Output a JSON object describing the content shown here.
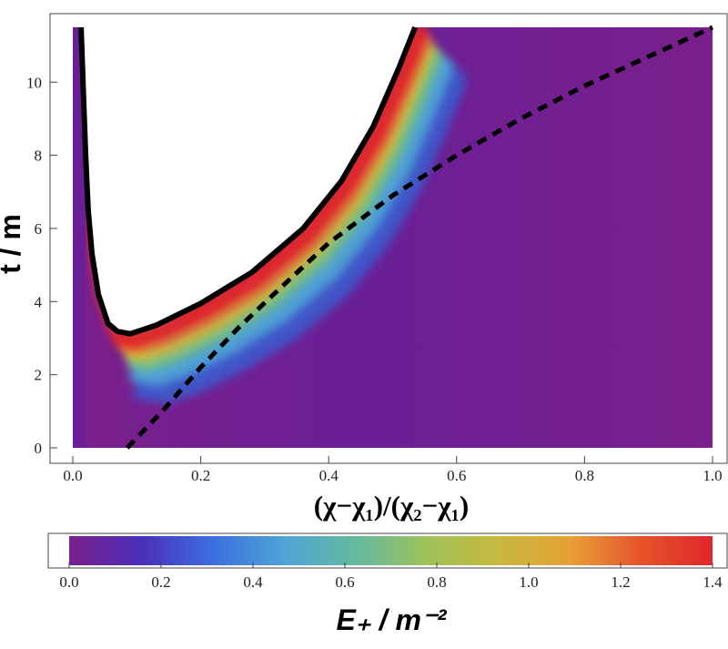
{
  "chart_data": [
    {
      "type": "heatmap",
      "xlabel": "(χ−χ₁)/(χ₂−χ₁)",
      "ylabel": "t / m",
      "xlim": [
        0.0,
        1.0
      ],
      "ylim": [
        0.0,
        11.5
      ],
      "x_ticks": [
        "0.0",
        "0.2",
        "0.4",
        "0.6",
        "0.8",
        "1.0"
      ],
      "y_ticks": [
        "0",
        "2",
        "4",
        "6",
        "8",
        "10"
      ],
      "x_tick_values": [
        0.0,
        0.2,
        0.4,
        0.6,
        0.8,
        1.0
      ],
      "y_tick_values": [
        0,
        2,
        4,
        6,
        8,
        10
      ],
      "grid": false,
      "colormap": [
        "#7b1f8c",
        "#4a2fb8",
        "#3d6ee0",
        "#4fa3d8",
        "#63b9a0",
        "#9ec25a",
        "#c8b83e",
        "#e6a036",
        "#e5532a",
        "#e0262a"
      ],
      "series": [
        {
          "style": "solid-black-thick",
          "points": [
            [
              0.013,
              11.5
            ],
            [
              0.016,
              10.0
            ],
            [
              0.02,
              8.0
            ],
            [
              0.024,
              6.5
            ],
            [
              0.03,
              5.3
            ],
            [
              0.04,
              4.2
            ],
            [
              0.055,
              3.4
            ],
            [
              0.07,
              3.18
            ],
            [
              0.09,
              3.12
            ],
            [
              0.13,
              3.35
            ],
            [
              0.2,
              3.95
            ],
            [
              0.28,
              4.8
            ],
            [
              0.36,
              6.0
            ],
            [
              0.42,
              7.3
            ],
            [
              0.47,
              8.8
            ],
            [
              0.51,
              10.4
            ],
            [
              0.535,
              11.5
            ]
          ]
        },
        {
          "style": "dashed-black",
          "points": [
            [
              0.085,
              0.0
            ],
            [
              0.14,
              1.0
            ],
            [
              0.2,
              2.2
            ],
            [
              0.26,
              3.3
            ],
            [
              0.32,
              4.3
            ],
            [
              0.4,
              5.6
            ],
            [
              0.5,
              6.9
            ],
            [
              0.6,
              8.0
            ],
            [
              0.7,
              9.0
            ],
            [
              0.8,
              9.9
            ],
            [
              0.9,
              10.7
            ],
            [
              1.0,
              11.5
            ]
          ]
        }
      ]
    },
    {
      "type": "colorbar",
      "xlabel": "E₊ / m⁻²",
      "xlim": [
        0.0,
        1.4
      ],
      "x_ticks": [
        "0.0",
        "0.2",
        "0.4",
        "0.6",
        "0.8",
        "1.0",
        "1.2",
        "1.4"
      ],
      "x_tick_values": [
        0.0,
        0.2,
        0.4,
        0.6,
        0.8,
        1.0,
        1.2,
        1.4
      ],
      "colormap": [
        "#7b1f8c",
        "#4a2fb8",
        "#3d6ee0",
        "#4fa3d8",
        "#63b9a0",
        "#9ec25a",
        "#c8b83e",
        "#e6a036",
        "#e5532a",
        "#e0262a"
      ]
    }
  ]
}
